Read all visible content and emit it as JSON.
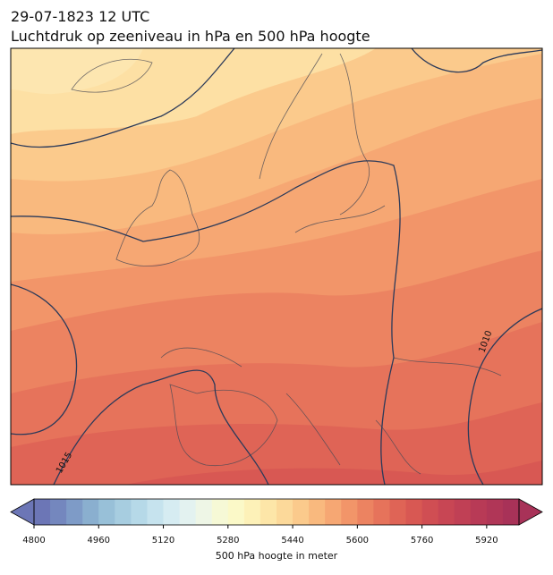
{
  "map": {
    "title": "29-07-1823 12 UTC",
    "subtitle": "Luchtdruk op zeeniveau in hPa en 500 hPa hoogte",
    "isobar_labels": [
      1015,
      1010
    ],
    "colorbar": {
      "label": "500 hPa hoogte in meter",
      "lim": [
        4800,
        6000
      ],
      "ticks": [
        4800,
        4960,
        5120,
        5280,
        5440,
        5600,
        5760,
        5920
      ],
      "colors": [
        "#6c76b6",
        "#7487be",
        "#7e9bc7",
        "#8aafcf",
        "#98c0d8",
        "#a7cde0",
        "#b6d9e8",
        "#c6e3ee",
        "#d6ecf2",
        "#e3f2f0",
        "#eef6e6",
        "#f6f9d6",
        "#fbf9c8",
        "#fdf1b8",
        "#fde6a8",
        "#fcd99a",
        "#fbca8c",
        "#f9b97e",
        "#f6a773",
        "#f29569",
        "#ec8361",
        "#e6735b",
        "#df6456",
        "#d85853",
        "#d04e53",
        "#c84654",
        "#c04055",
        "#b83a56",
        "#b03657",
        "#a83258"
      ]
    }
  }
}
